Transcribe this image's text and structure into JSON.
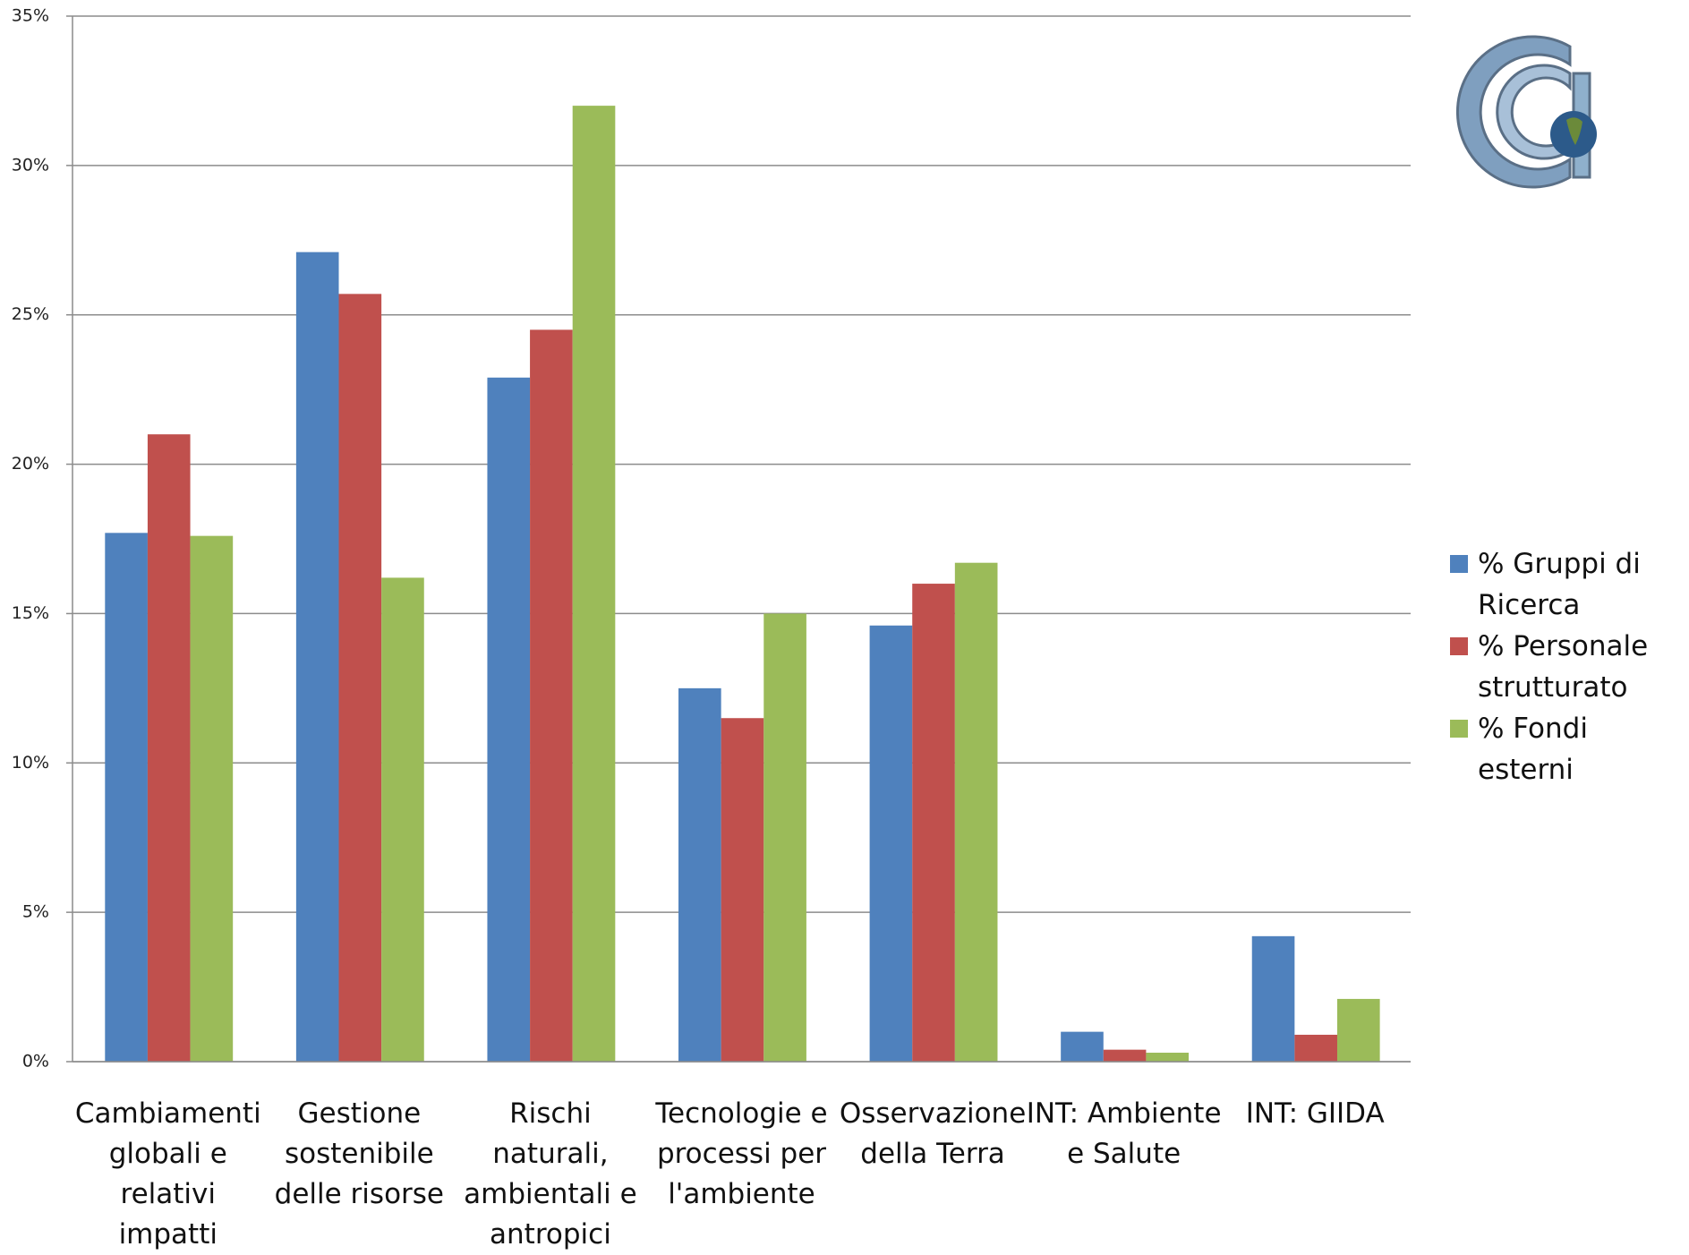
{
  "chart_data": {
    "type": "bar",
    "categories": [
      "Cambiamenti globali e relativi impatti",
      "Gestione sostenibile delle risorse",
      "Rischi naturali, ambientali e antropici",
      "Tecnologie e processi per l'ambiente",
      "Osservazione della Terra",
      "INT: Ambiente e Salute",
      "INT: GIIDA"
    ],
    "series": [
      {
        "name": "% Gruppi di Ricerca",
        "color": "#4f81bd",
        "values": [
          17.7,
          27.1,
          22.9,
          12.5,
          14.6,
          1.0,
          4.2
        ]
      },
      {
        "name": "% Personale strutturato",
        "color": "#c0504d",
        "values": [
          21.0,
          25.7,
          24.5,
          11.5,
          16.0,
          0.4,
          0.9
        ]
      },
      {
        "name": "% Fondi esterni",
        "color": "#9bbb59",
        "values": [
          17.6,
          16.2,
          32.0,
          15.0,
          16.7,
          0.3,
          2.1
        ]
      }
    ],
    "ylim": [
      0,
      35
    ],
    "yticks": [
      {
        "value": 0,
        "label": "0%"
      },
      {
        "value": 5,
        "label": "5%"
      },
      {
        "value": 10,
        "label": "10%"
      },
      {
        "value": 15,
        "label": "15%"
      },
      {
        "value": 20,
        "label": "20%"
      },
      {
        "value": 25,
        "label": "25%"
      },
      {
        "value": 30,
        "label": "30%"
      },
      {
        "value": 35,
        "label": "35%"
      }
    ],
    "grid": true,
    "legend": "right"
  }
}
